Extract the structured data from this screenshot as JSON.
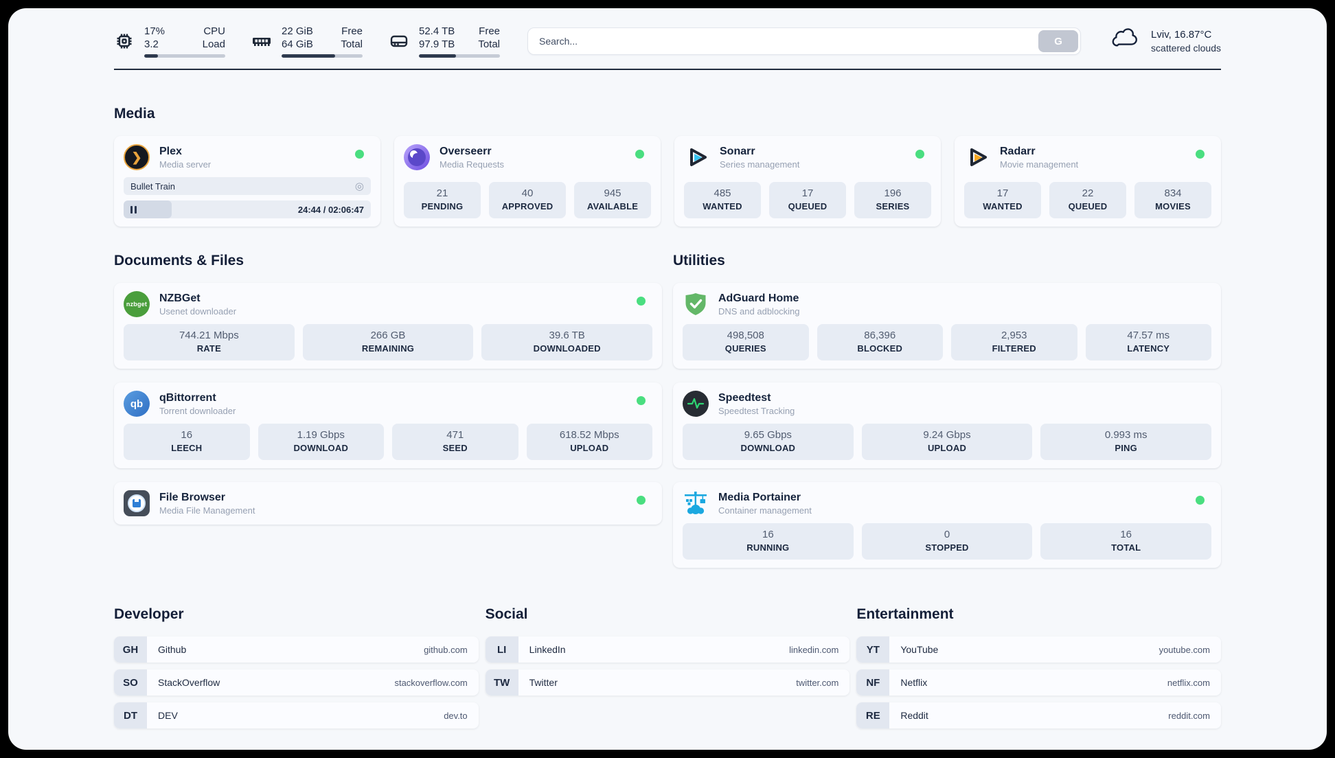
{
  "header": {
    "stats": [
      {
        "icon": "cpu-icon",
        "v1": "17%",
        "l1": "CPU",
        "v2": "3.2",
        "l2": "Load",
        "progress": 17
      },
      {
        "icon": "ram-icon",
        "v1": "22 GiB",
        "l1": "Free",
        "v2": "64 GiB",
        "l2": "Total",
        "progress": 66
      },
      {
        "icon": "disk-icon",
        "v1": "52.4 TB",
        "l1": "Free",
        "v2": "97.9 TB",
        "l2": "Total",
        "progress": 46
      }
    ],
    "search": {
      "placeholder": "Search...",
      "button_label": "G"
    },
    "weather": {
      "icon": "cloud-icon",
      "line1": "Lviv, 16.87°C",
      "line2": "scattered clouds"
    }
  },
  "colors": {
    "status_online": "#4ade80",
    "accent_dark": "#202b3d"
  },
  "sections": {
    "media": {
      "title": "Media",
      "plex": {
        "icon": "plex-icon",
        "name": "Plex",
        "desc": "Media server",
        "status": "online",
        "now_playing": {
          "title": "Bullet Train",
          "icon": "camera-icon"
        },
        "player": {
          "icon": "pause-icon",
          "time": "24:44 / 02:06:47",
          "progress": 19.5
        }
      },
      "overseerr": {
        "icon": "overseerr-icon",
        "name": "Overseerr",
        "desc": "Media Requests",
        "status": "online",
        "stats": [
          {
            "value": "21",
            "label": "PENDING"
          },
          {
            "value": "40",
            "label": "APPROVED"
          },
          {
            "value": "945",
            "label": "AVAILABLE"
          }
        ]
      },
      "sonarr": {
        "icon": "sonarr-icon",
        "name": "Sonarr",
        "desc": "Series management",
        "status": "online",
        "stats": [
          {
            "value": "485",
            "label": "WANTED"
          },
          {
            "value": "17",
            "label": "QUEUED"
          },
          {
            "value": "196",
            "label": "SERIES"
          }
        ]
      },
      "radarr": {
        "icon": "radarr-icon",
        "name": "Radarr",
        "desc": "Movie management",
        "status": "online",
        "stats": [
          {
            "value": "17",
            "label": "WANTED"
          },
          {
            "value": "22",
            "label": "QUEUED"
          },
          {
            "value": "834",
            "label": "MOVIES"
          }
        ]
      }
    },
    "documents": {
      "title": "Documents & Files",
      "nzbget": {
        "icon": "nzbget-icon",
        "icon_text": "nzbget",
        "name": "NZBGet",
        "desc": "Usenet downloader",
        "status": "online",
        "stats": [
          {
            "value": "744.21 Mbps",
            "label": "RATE"
          },
          {
            "value": "266 GB",
            "label": "REMAINING"
          },
          {
            "value": "39.6 TB",
            "label": "DOWNLOADED"
          }
        ]
      },
      "qbittorrent": {
        "icon": "qbittorrent-icon",
        "icon_text": "qb",
        "name": "qBittorrent",
        "desc": "Torrent downloader",
        "status": "online",
        "stats": [
          {
            "value": "16",
            "label": "LEECH"
          },
          {
            "value": "1.19 Gbps",
            "label": "DOWNLOAD"
          },
          {
            "value": "471",
            "label": "SEED"
          },
          {
            "value": "618.52 Mbps",
            "label": "UPLOAD"
          }
        ]
      },
      "filebrowser": {
        "icon": "filebrowser-icon",
        "name": "File Browser",
        "desc": "Media File Management",
        "status": "online"
      }
    },
    "utilities": {
      "title": "Utilities",
      "adguard": {
        "icon": "adguard-shield-icon",
        "name": "AdGuard Home",
        "desc": "DNS and adblocking",
        "stats": [
          {
            "value": "498,508",
            "label": "QUERIES"
          },
          {
            "value": "86,396",
            "label": "BLOCKED"
          },
          {
            "value": "2,953",
            "label": "FILTERED"
          },
          {
            "value": "47.57 ms",
            "label": "LATENCY"
          }
        ]
      },
      "speedtest": {
        "icon": "speedtest-pulse-icon",
        "name": "Speedtest",
        "desc": "Speedtest Tracking",
        "stats": [
          {
            "value": "9.65 Gbps",
            "label": "DOWNLOAD"
          },
          {
            "value": "9.24 Gbps",
            "label": "UPLOAD"
          },
          {
            "value": "0.993 ms",
            "label": "PING"
          }
        ]
      },
      "portainer": {
        "icon": "portainer-crane-icon",
        "name": "Media Portainer",
        "desc": "Container management",
        "status": "online",
        "stats": [
          {
            "value": "16",
            "label": "RUNNING"
          },
          {
            "value": "0",
            "label": "STOPPED"
          },
          {
            "value": "16",
            "label": "TOTAL"
          }
        ]
      }
    },
    "developer": {
      "title": "Developer",
      "items": [
        {
          "abbr": "GH",
          "name": "Github",
          "url": "github.com"
        },
        {
          "abbr": "SO",
          "name": "StackOverflow",
          "url": "stackoverflow.com"
        },
        {
          "abbr": "DT",
          "name": "DEV",
          "url": "dev.to"
        }
      ]
    },
    "social": {
      "title": "Social",
      "items": [
        {
          "abbr": "LI",
          "name": "LinkedIn",
          "url": "linkedin.com"
        },
        {
          "abbr": "TW",
          "name": "Twitter",
          "url": "twitter.com"
        }
      ]
    },
    "entertainment": {
      "title": "Entertainment",
      "items": [
        {
          "abbr": "YT",
          "name": "YouTube",
          "url": "youtube.com"
        },
        {
          "abbr": "NF",
          "name": "Netflix",
          "url": "netflix.com"
        },
        {
          "abbr": "RE",
          "name": "Reddit",
          "url": "reddit.com"
        }
      ]
    }
  }
}
